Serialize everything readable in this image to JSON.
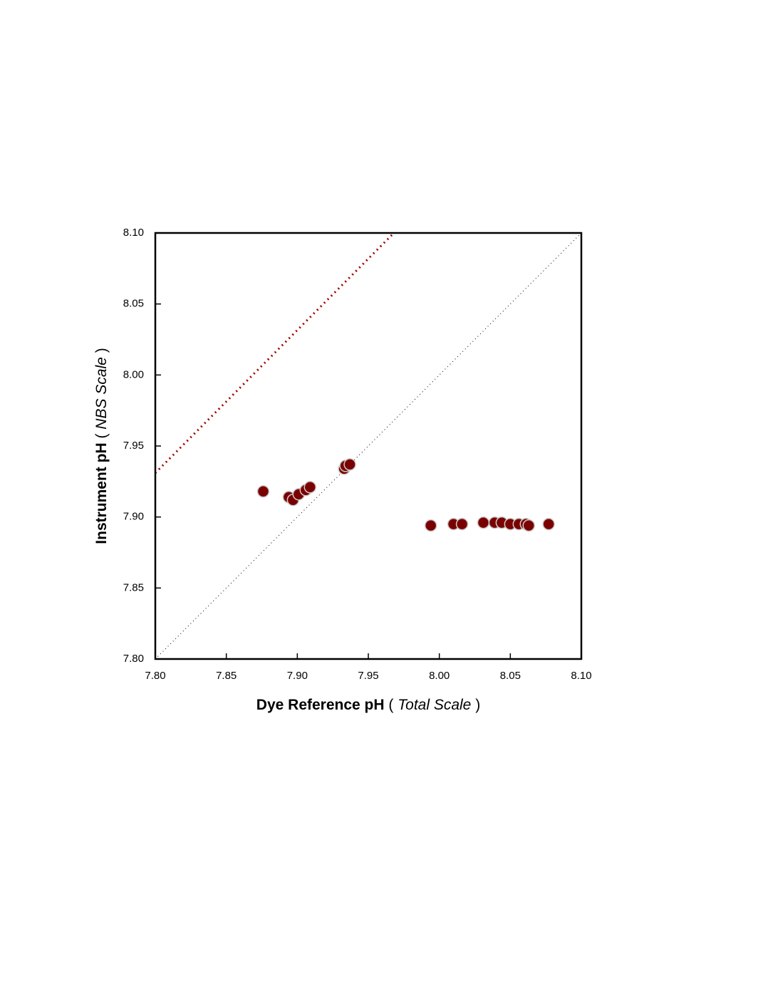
{
  "chart_data": {
    "type": "scatter",
    "xlabel": [
      "Dye Reference pH",
      "(",
      "Total Scale",
      ")"
    ],
    "ylabel": [
      "Instrument pH",
      "(",
      "NBS Scale",
      ")"
    ],
    "xlim": [
      7.8,
      8.1
    ],
    "ylim": [
      7.8,
      8.1
    ],
    "xticks": [
      {
        "value": 7.8,
        "label": "7.80"
      },
      7.85,
      {
        "value": 7.9,
        "label": "7.90"
      },
      7.95,
      {
        "value": 8.0,
        "label": "8.00"
      },
      8.05,
      {
        "value": 8.1,
        "label": "8.10"
      }
    ],
    "yticks": [
      {
        "value": 7.8,
        "label": "7.80"
      },
      7.85,
      {
        "value": 7.9,
        "label": "7.90"
      },
      7.95,
      {
        "value": 8.0,
        "label": "8.00"
      },
      8.05,
      {
        "value": 8.1,
        "label": "8.10"
      }
    ],
    "series": [
      {
        "color": "#7a0000",
        "x": [
          7.876,
          7.894,
          7.897,
          7.901,
          7.906,
          7.909,
          7.933,
          7.934,
          7.937,
          7.994,
          8.01,
          8.016,
          8.031,
          8.039,
          8.044,
          8.05,
          8.056,
          8.061,
          8.063,
          8.077
        ],
        "values": [
          7.918,
          7.914,
          7.912,
          7.916,
          7.919,
          7.921,
          7.934,
          7.936,
          7.937,
          7.894,
          7.895,
          7.895,
          7.896,
          7.896,
          7.896,
          7.895,
          7.895,
          7.895,
          7.894,
          7.895
        ]
      }
    ],
    "lines": [
      {
        "color": "#000000",
        "x": [
          7.8,
          8.1
        ],
        "values": [
          7.8,
          8.1
        ]
      },
      {
        "color": "#a00000",
        "x": [
          7.8,
          7.968
        ],
        "values": [
          7.931,
          8.1
        ]
      }
    ]
  }
}
